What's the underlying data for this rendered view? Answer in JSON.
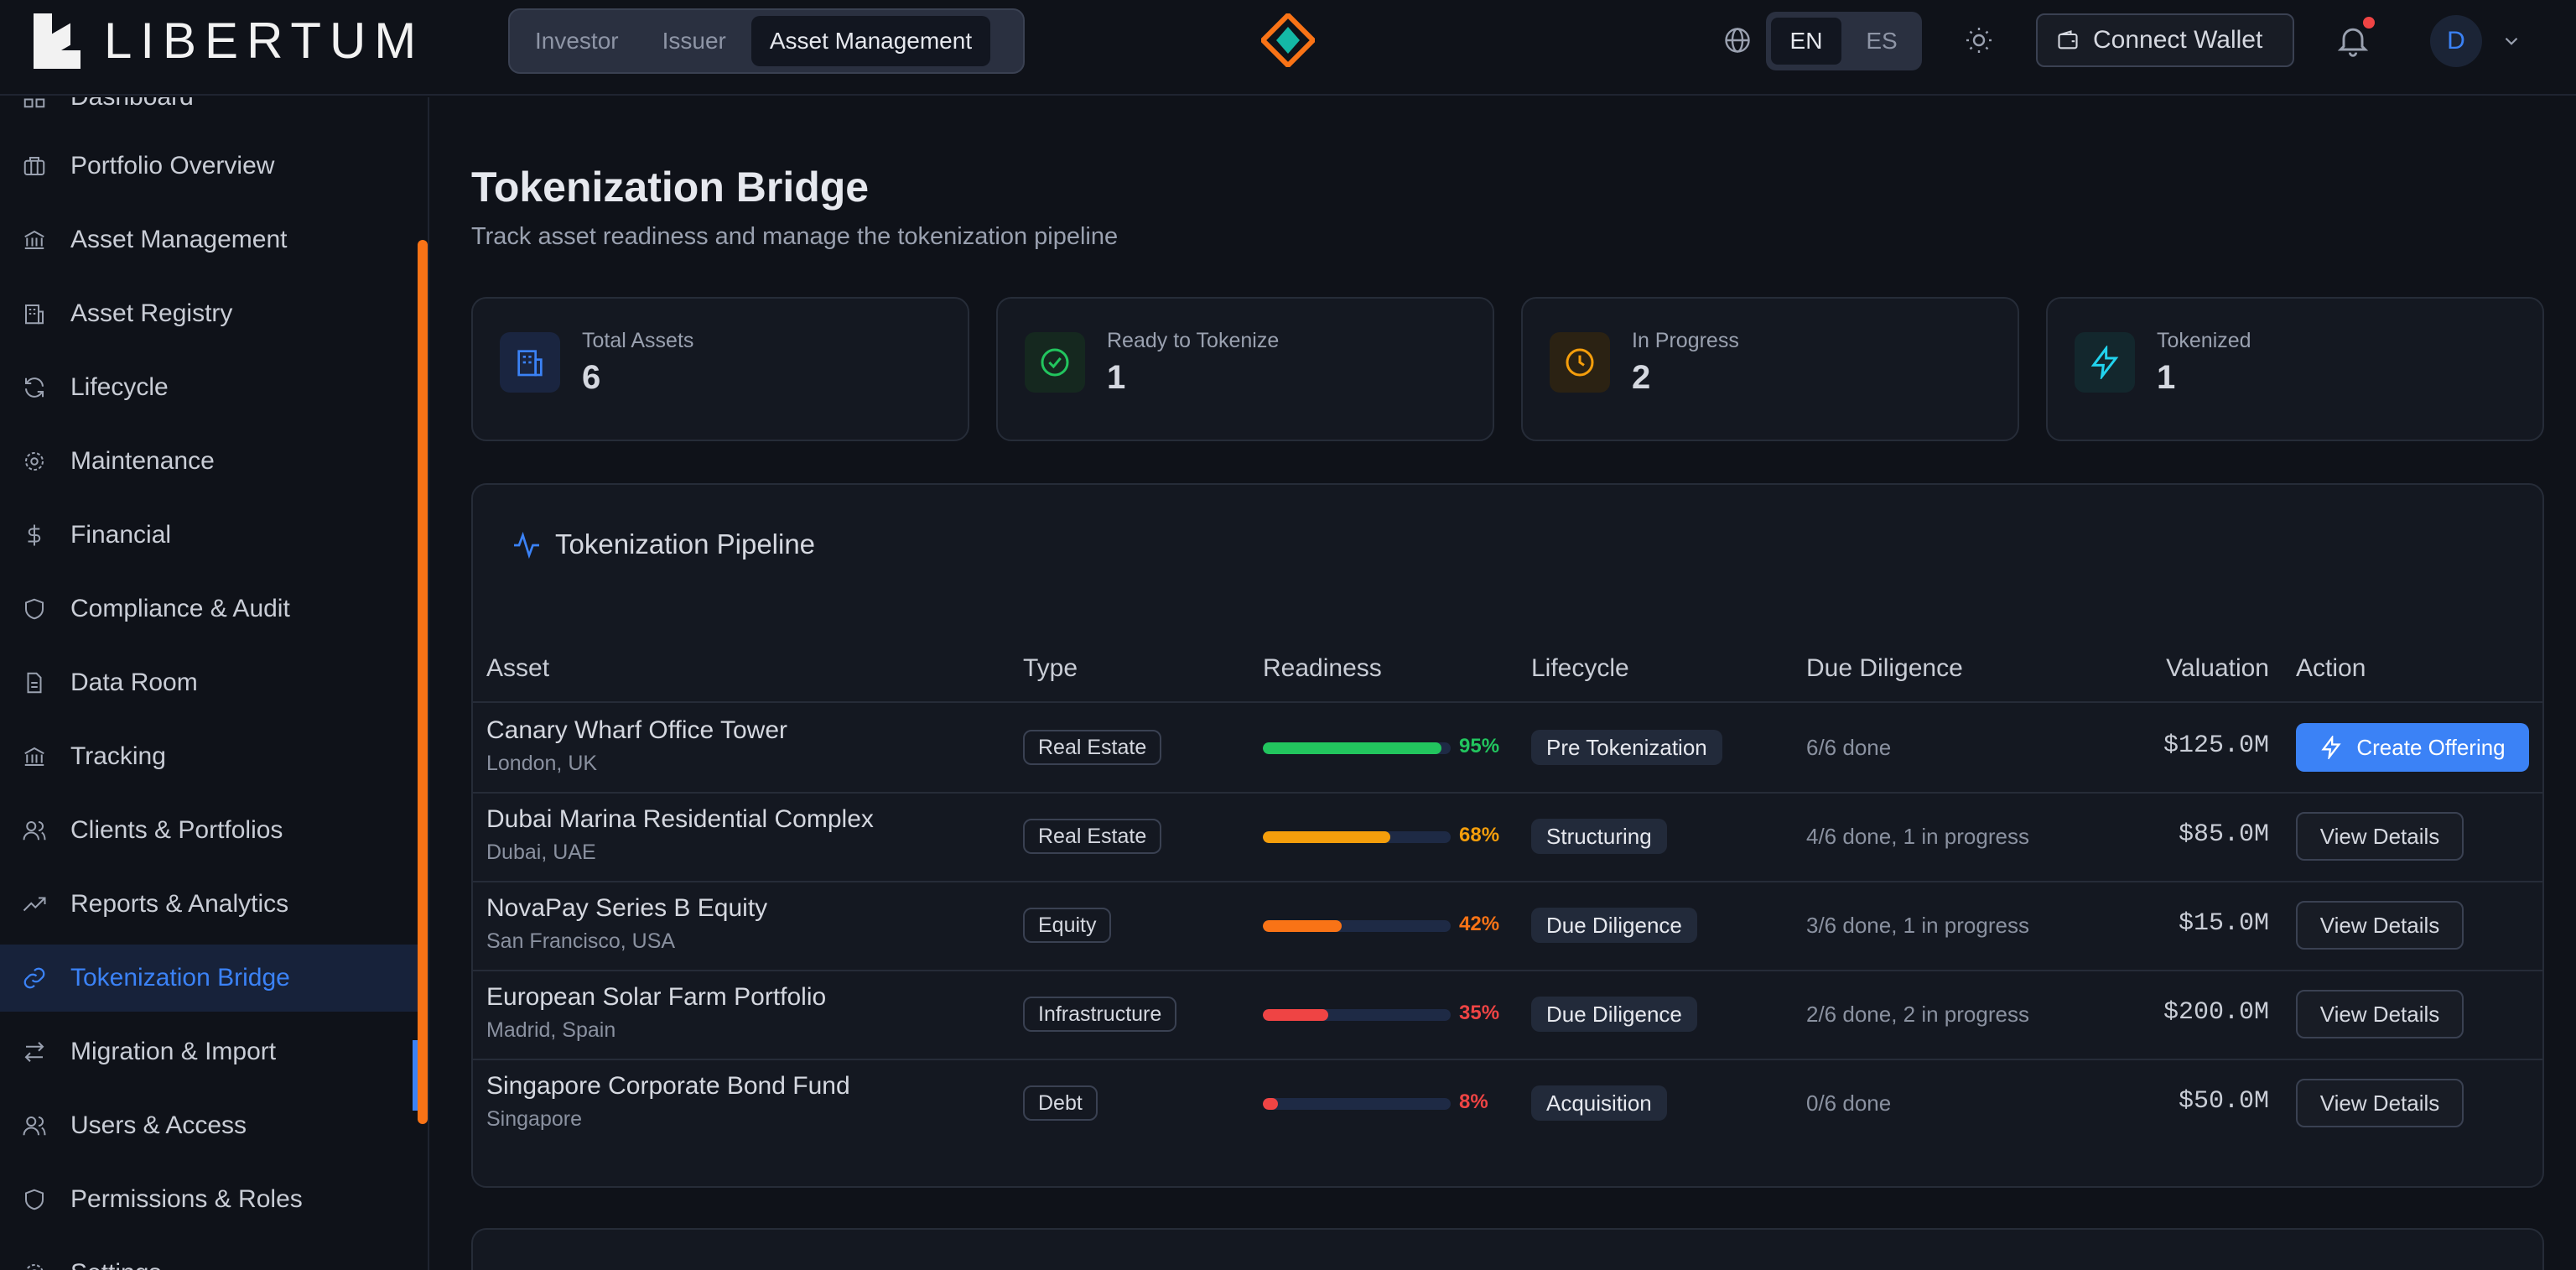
{
  "brand": {
    "name": "LIBERTUM"
  },
  "roles": [
    "Investor",
    "Issuer",
    "Asset Management"
  ],
  "languages": [
    "EN",
    "ES"
  ],
  "header": {
    "connect_wallet": "Connect Wallet",
    "avatar_initial": "D"
  },
  "sidebar": {
    "items": [
      {
        "label": "Dashboard",
        "icon": "dashboard-icon"
      },
      {
        "label": "Portfolio Overview",
        "icon": "briefcase-icon"
      },
      {
        "label": "Asset Management",
        "icon": "bank-icon"
      },
      {
        "label": "Asset Registry",
        "icon": "building-icon"
      },
      {
        "label": "Lifecycle",
        "icon": "refresh-icon"
      },
      {
        "label": "Maintenance",
        "icon": "gear-icon"
      },
      {
        "label": "Financial",
        "icon": "dollar-icon"
      },
      {
        "label": "Compliance & Audit",
        "icon": "shield-icon"
      },
      {
        "label": "Data Room",
        "icon": "document-icon"
      },
      {
        "label": "Tracking",
        "icon": "bank-icon"
      },
      {
        "label": "Clients & Portfolios",
        "icon": "users-icon"
      },
      {
        "label": "Reports & Analytics",
        "icon": "trending-up-icon"
      },
      {
        "label": "Tokenization Bridge",
        "icon": "link-icon",
        "active": true
      },
      {
        "label": "Migration & Import",
        "icon": "arrows-icon"
      },
      {
        "label": "Users & Access",
        "icon": "users-icon"
      },
      {
        "label": "Permissions & Roles",
        "icon": "shield-icon"
      },
      {
        "label": "Settings",
        "icon": "gear-icon"
      }
    ]
  },
  "page": {
    "title": "Tokenization Bridge",
    "subtitle": "Track asset readiness and manage the tokenization pipeline"
  },
  "stats": [
    {
      "label": "Total Assets",
      "value": "6",
      "icon": "building-icon",
      "color": "#3b82f6"
    },
    {
      "label": "Ready to Tokenize",
      "value": "1",
      "icon": "check-circle-icon",
      "color": "#22c55e"
    },
    {
      "label": "In Progress",
      "value": "2",
      "icon": "clock-icon",
      "color": "#f59e0b"
    },
    {
      "label": "Tokenized",
      "value": "1",
      "icon": "lightning-icon",
      "color": "#22d3ee"
    }
  ],
  "pipeline": {
    "title": "Tokenization Pipeline",
    "columns": [
      "Asset",
      "Type",
      "Readiness",
      "Lifecycle",
      "Due Diligence",
      "Valuation",
      "Action"
    ],
    "rows": [
      {
        "name": "Canary Wharf Office Tower",
        "location": "London, UK",
        "type": "Real Estate",
        "readiness": 95,
        "readiness_label": "95%",
        "color": "#22c55e",
        "lifecycle": "Pre Tokenization",
        "due_diligence": "6/6 done",
        "valuation": "$125.0M",
        "action": "Create Offering",
        "primary": true
      },
      {
        "name": "Dubai Marina Residential Complex",
        "location": "Dubai, UAE",
        "type": "Real Estate",
        "readiness": 68,
        "readiness_label": "68%",
        "color": "#f59e0b",
        "lifecycle": "Structuring",
        "due_diligence": "4/6 done, 1 in progress",
        "valuation": "$85.0M",
        "action": "View Details"
      },
      {
        "name": "NovaPay Series B Equity",
        "location": "San Francisco, USA",
        "type": "Equity",
        "readiness": 42,
        "readiness_label": "42%",
        "color": "#f97316",
        "lifecycle": "Due Diligence",
        "due_diligence": "3/6 done, 1 in progress",
        "valuation": "$15.0M",
        "action": "View Details"
      },
      {
        "name": "European Solar Farm Portfolio",
        "location": "Madrid, Spain",
        "type": "Infrastructure",
        "readiness": 35,
        "readiness_label": "35%",
        "color": "#ef4444",
        "lifecycle": "Due Diligence",
        "due_diligence": "2/6 done, 2 in progress",
        "valuation": "$200.0M",
        "action": "View Details"
      },
      {
        "name": "Singapore Corporate Bond Fund",
        "location": "Singapore",
        "type": "Debt",
        "readiness": 8,
        "readiness_label": "8%",
        "color": "#ef4444",
        "lifecycle": "Acquisition",
        "due_diligence": "0/6 done",
        "valuation": "$50.0M",
        "action": "View Details"
      }
    ]
  }
}
